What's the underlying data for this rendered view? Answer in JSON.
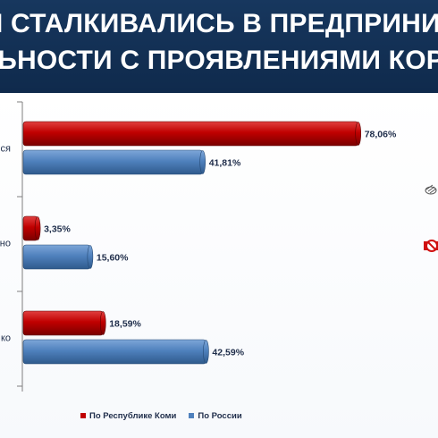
{
  "header": {
    "title_line1": "ВЫ СТАЛКИВАЛИСЬ В ПРЕДПРИНИМ",
    "title_line2": "ЛЬНОСТИ С ПРОЯВЛЕНИЯМИ КОРРУП"
  },
  "colors": {
    "title_bg": "#17375e",
    "series_komi": "#c00000",
    "series_russia": "#4f81bd"
  },
  "chart_data": {
    "type": "bar",
    "orientation": "horizontal",
    "categories": [
      "ся",
      "но",
      "ко"
    ],
    "series": [
      {
        "name": "По Республике Коми",
        "values": [
          78.06,
          3.35,
          18.59
        ],
        "labels": [
          "78,06%",
          "3,35%",
          "18,59%"
        ]
      },
      {
        "name": "По России",
        "values": [
          41.81,
          15.6,
          42.59
        ],
        "labels": [
          "41,81%",
          "15,60%",
          "42,59%"
        ]
      }
    ],
    "xlim": [
      0,
      100
    ],
    "grid": false,
    "legend_position": "bottom"
  },
  "icons": {
    "right_icon_1": "pencil-cluster-icon",
    "right_icon_2": "no-bribe-icon"
  }
}
